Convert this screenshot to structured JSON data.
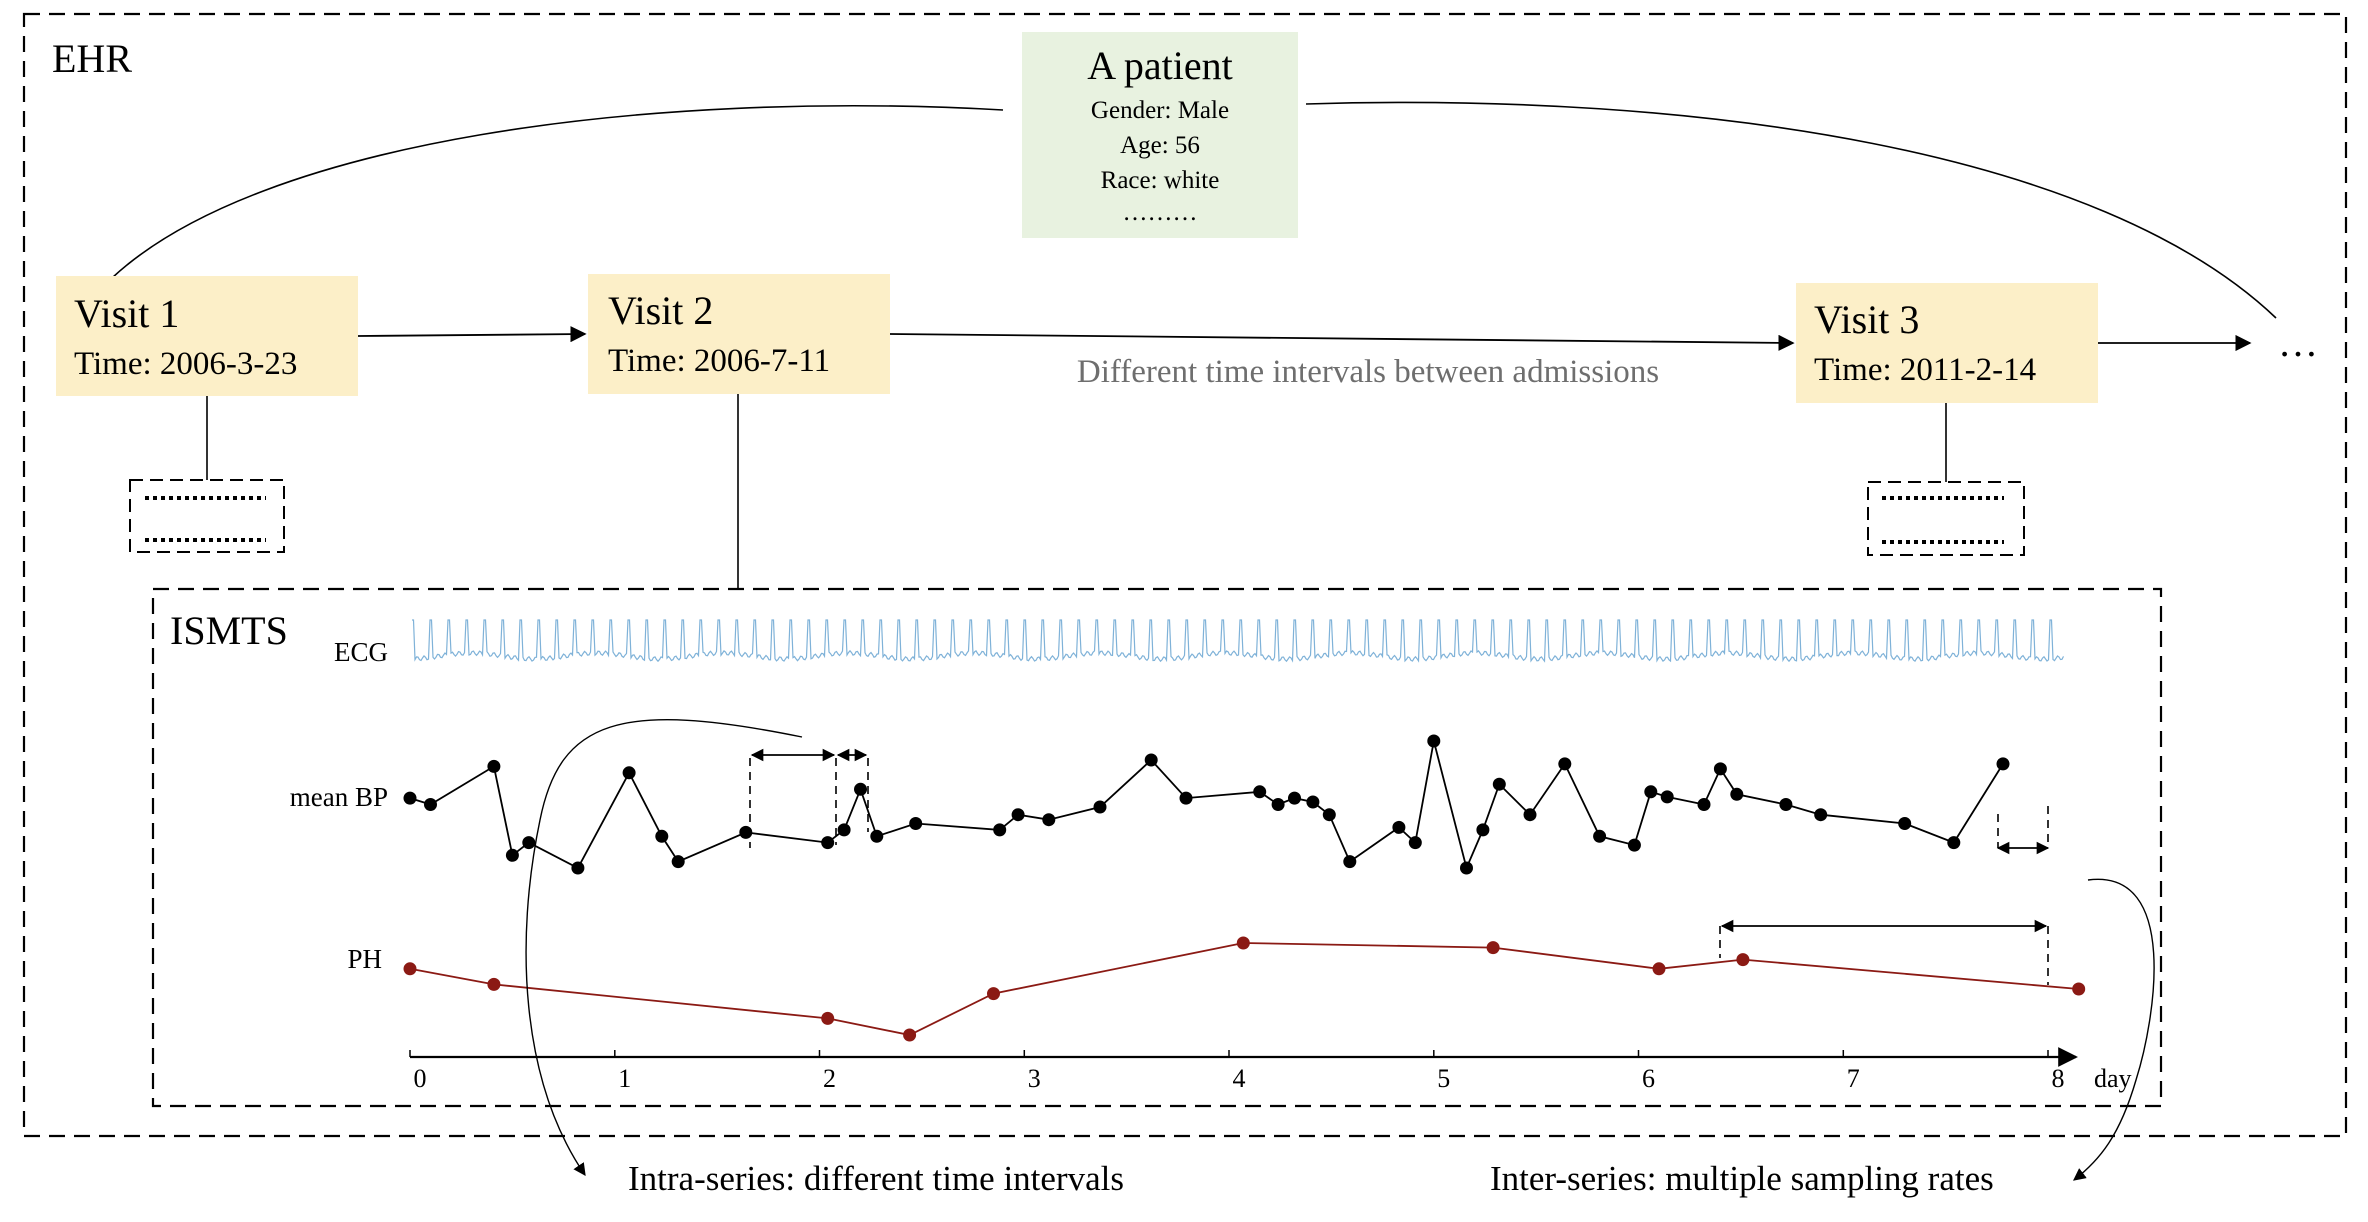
{
  "ehr": {
    "label": "EHR"
  },
  "patient": {
    "title": "A patient",
    "gender": "Gender: Male",
    "age": "Age: 56",
    "race": "Race: white",
    "more": "………"
  },
  "visits": [
    {
      "title": "Visit 1",
      "time": "Time: 2006-3-23"
    },
    {
      "title": "Visit 2",
      "time": "Time: 2006-7-11"
    },
    {
      "title": "Visit 3",
      "time": "Time: 2011-2-14"
    }
  ],
  "continuation": "…",
  "interval_note": "Different time intervals between admissions",
  "ismts": {
    "label": "ISMTS",
    "series_labels": {
      "ecg": "ECG",
      "bp": "mean BP",
      "ph": "PH"
    },
    "x_ticks": [
      "0",
      "1",
      "2",
      "3",
      "4",
      "5",
      "6",
      "7",
      "8"
    ],
    "x_unit": "day"
  },
  "colors": {
    "ecg": "#7fb2d8",
    "bp": "#000000",
    "ph": "#8b1a14",
    "patient_fill": "#e8f2e0",
    "visit_fill": "#fcefc8",
    "note": "#6e6e6e"
  },
  "chart_data": [
    {
      "type": "line",
      "series": [
        {
          "name": "mean BP",
          "x": [
            0.0,
            0.1,
            0.41,
            0.5,
            0.58,
            0.82,
            1.07,
            1.23,
            1.31,
            1.64,
            2.04,
            2.12,
            2.2,
            2.28,
            2.47,
            2.88,
            2.97,
            3.12,
            3.37,
            3.62,
            3.79,
            4.15,
            4.24,
            4.32,
            4.41,
            4.49,
            4.59,
            4.83,
            4.91,
            5.0,
            5.16,
            5.24,
            5.32,
            5.47,
            5.64,
            5.81,
            5.98,
            6.06,
            6.14,
            6.32,
            6.4,
            6.48,
            6.72,
            6.89,
            7.3,
            7.54,
            7.78
          ],
          "y": [
            0.55,
            0.5,
            0.8,
            0.1,
            0.2,
            0.0,
            0.75,
            0.25,
            0.05,
            0.28,
            0.2,
            0.3,
            0.62,
            0.25,
            0.35,
            0.3,
            0.42,
            0.38,
            0.48,
            0.85,
            0.55,
            0.6,
            0.5,
            0.55,
            0.52,
            0.42,
            0.05,
            0.32,
            0.2,
            1.0,
            0.0,
            0.3,
            0.66,
            0.42,
            0.82,
            0.25,
            0.18,
            0.6,
            0.56,
            0.5,
            0.78,
            0.58,
            0.5,
            0.42,
            0.35,
            0.2,
            0.82
          ]
        },
        {
          "name": "PH",
          "x": [
            0.0,
            0.41,
            2.04,
            2.44,
            2.85,
            4.07,
            5.29,
            6.1,
            6.51,
            8.15
          ],
          "y": [
            0.72,
            0.55,
            0.18,
            0.0,
            0.45,
            1.0,
            0.95,
            0.72,
            0.82,
            0.5
          ]
        }
      ],
      "xlim": [
        0,
        8
      ]
    }
  ],
  "annotations": {
    "intra": "Intra-series: different time intervals",
    "inter": "Inter-series: multiple sampling rates"
  }
}
